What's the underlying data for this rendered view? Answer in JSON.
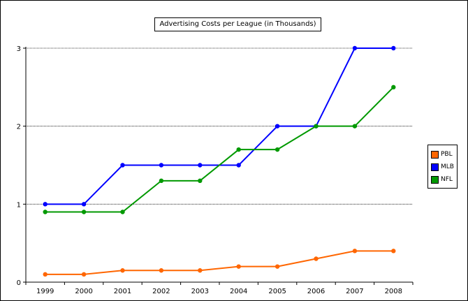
{
  "chart_data": {
    "type": "line",
    "title": "Advertising Costs per League (in Thousands)",
    "xlabel": "",
    "ylabel": "",
    "categories": [
      "1999",
      "2000",
      "2001",
      "2002",
      "2003",
      "2004",
      "2005",
      "2006",
      "2007",
      "2008"
    ],
    "y_ticks": [
      "0",
      "1",
      "2",
      "3"
    ],
    "ylim": [
      0,
      3
    ],
    "grid": true,
    "legend_position": "right",
    "series": [
      {
        "name": "PBL",
        "color": "#ff6600",
        "values": [
          0.1,
          0.1,
          0.15,
          0.15,
          0.15,
          0.2,
          0.2,
          0.3,
          0.4,
          0.4
        ]
      },
      {
        "name": "MLB",
        "color": "#0000ff",
        "values": [
          1.0,
          1.0,
          1.5,
          1.5,
          1.5,
          1.5,
          2.0,
          2.0,
          3.0,
          3.0
        ]
      },
      {
        "name": "NFL",
        "color": "#009900",
        "values": [
          0.9,
          0.9,
          0.9,
          1.3,
          1.3,
          1.7,
          1.7,
          2.0,
          2.0,
          2.5
        ]
      }
    ]
  }
}
